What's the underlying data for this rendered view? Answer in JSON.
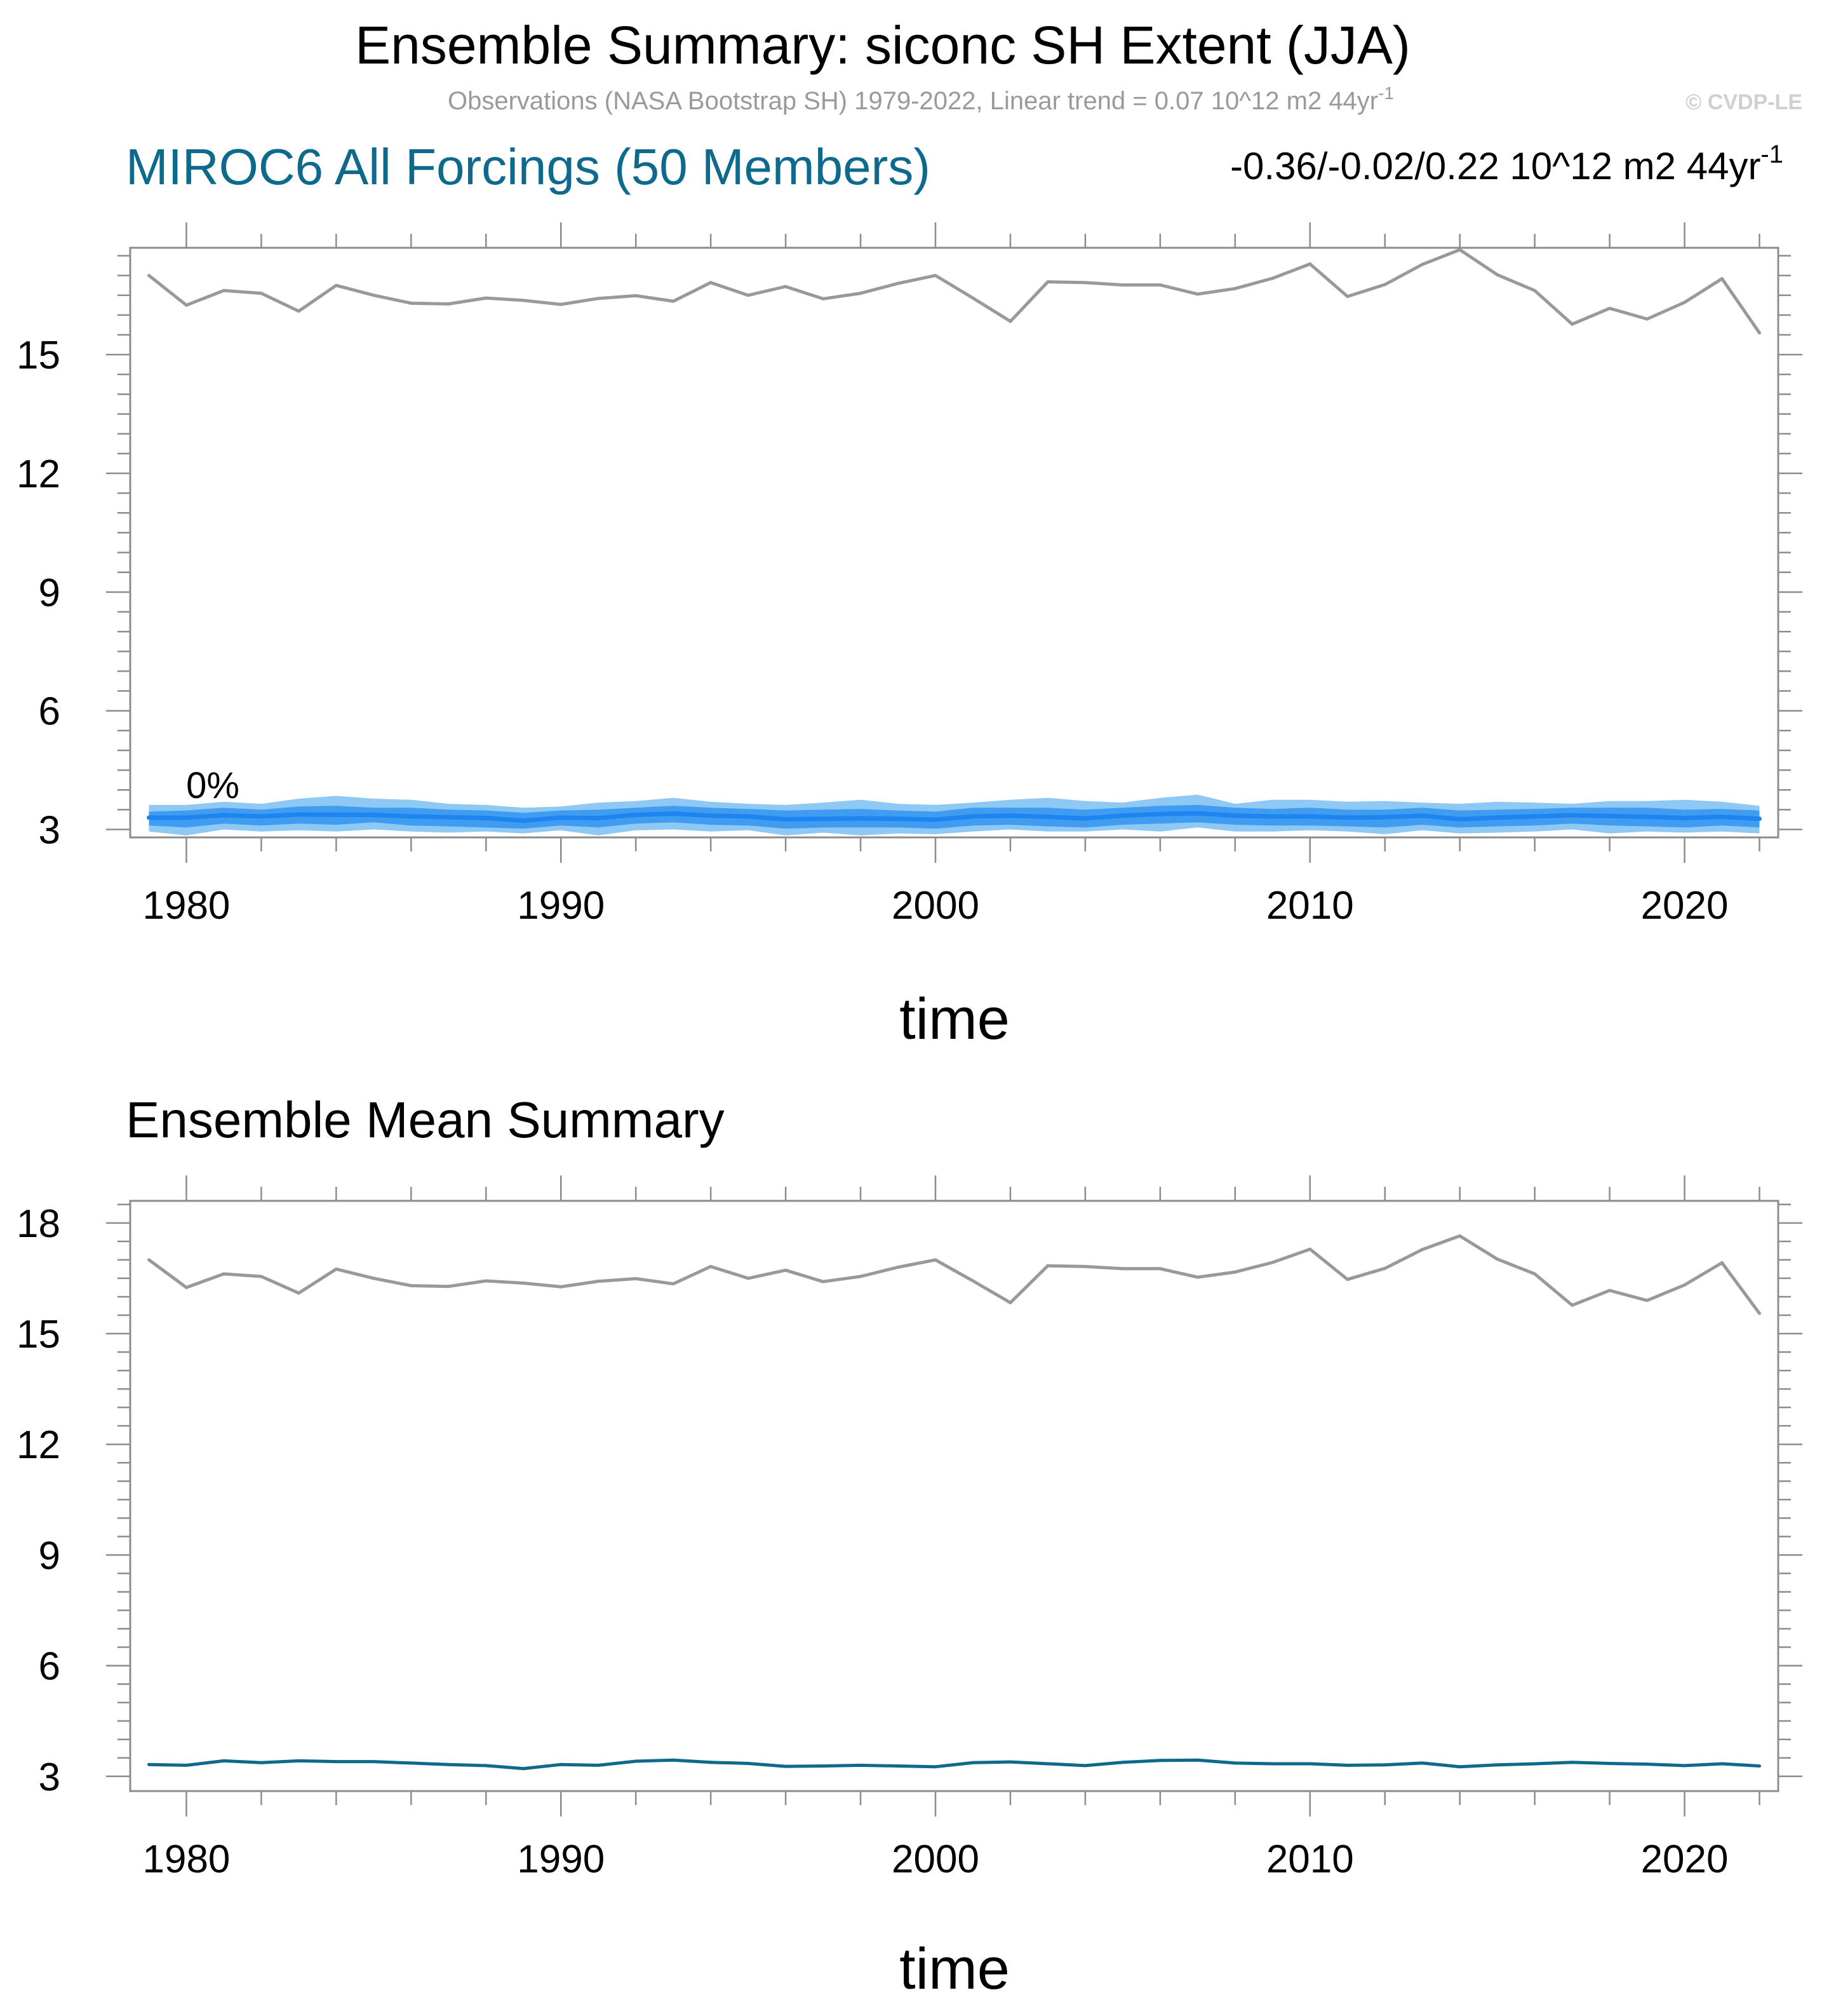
{
  "header": {
    "title": "Ensemble Summary: siconc SH Extent (JJA)",
    "subtitle": "Observations (NASA Bootstrap SH) 1979-2022, Linear trend = 0.07 10^12 m2 44yr",
    "subtitle_sup": "-1",
    "copyright": "© CVDP-LE"
  },
  "panel_top": {
    "model_title": "MIROC6 All Forcings (50 Members)",
    "trend_text": "-0.36/-0.02/0.22 10^12 m2 44yr",
    "trend_sup": "-1",
    "percent_label": "0%",
    "xlabel": "time"
  },
  "panel_bottom": {
    "title": "Ensemble Mean Summary",
    "xlabel": "time"
  },
  "colors": {
    "observations": "#999999",
    "ensemble_mean": "#0e6a8c",
    "band_outer": "#8ec8f5",
    "band_inner": "#3f9cf0",
    "median_line": "#1e84f0",
    "frame": "#8c8c8c"
  },
  "chart_data": [
    {
      "type": "line",
      "title": "MIROC6 All Forcings (50 Members)",
      "xlabel": "time",
      "ylabel": "",
      "xlim": [
        1978.5,
        2022.5
      ],
      "ylim": [
        2.8,
        17.7
      ],
      "x_ticks": [
        1980,
        1990,
        2000,
        2010,
        2020
      ],
      "y_ticks": [
        3,
        6,
        9,
        12,
        15
      ],
      "grid": false,
      "x": [
        1979,
        1980,
        1981,
        1982,
        1983,
        1984,
        1985,
        1986,
        1987,
        1988,
        1989,
        1990,
        1991,
        1992,
        1993,
        1994,
        1995,
        1996,
        1997,
        1998,
        1999,
        2000,
        2001,
        2002,
        2003,
        2004,
        2005,
        2006,
        2007,
        2008,
        2009,
        2010,
        2011,
        2012,
        2013,
        2014,
        2015,
        2016,
        2017,
        2018,
        2019,
        2020,
        2021,
        2022
      ],
      "series": [
        {
          "role": "observations",
          "values": [
            17.0,
            16.25,
            16.62,
            16.55,
            16.1,
            16.75,
            16.5,
            16.3,
            16.28,
            16.43,
            16.37,
            16.27,
            16.42,
            16.49,
            16.35,
            16.82,
            16.5,
            16.72,
            16.41,
            16.55,
            16.8,
            17.0,
            16.43,
            15.84,
            16.84,
            16.82,
            16.76,
            16.76,
            16.53,
            16.67,
            16.93,
            17.29,
            16.47,
            16.77,
            17.28,
            17.65,
            17.02,
            16.62,
            15.77,
            16.17,
            15.9,
            16.32,
            16.92,
            15.55
          ]
        },
        {
          "role": "ensemble_median",
          "values": [
            3.3,
            3.3,
            3.36,
            3.33,
            3.38,
            3.37,
            3.37,
            3.33,
            3.31,
            3.29,
            3.22,
            3.3,
            3.29,
            3.37,
            3.4,
            3.35,
            3.33,
            3.26,
            3.27,
            3.28,
            3.27,
            3.25,
            3.33,
            3.35,
            3.32,
            3.28,
            3.35,
            3.39,
            3.41,
            3.35,
            3.33,
            3.33,
            3.3,
            3.31,
            3.35,
            3.26,
            3.3,
            3.33,
            3.36,
            3.34,
            3.32,
            3.29,
            3.32,
            3.27
          ]
        },
        {
          "role": "inner_band_low",
          "values": [
            3.1,
            3.05,
            3.15,
            3.1,
            3.15,
            3.12,
            3.18,
            3.1,
            3.08,
            3.05,
            3.02,
            3.1,
            3.05,
            3.15,
            3.18,
            3.12,
            3.1,
            3.02,
            3.05,
            3.05,
            3.05,
            3.02,
            3.1,
            3.12,
            3.08,
            3.05,
            3.12,
            3.15,
            3.18,
            3.12,
            3.1,
            3.1,
            3.08,
            3.05,
            3.12,
            3.05,
            3.08,
            3.1,
            3.15,
            3.1,
            3.08,
            3.05,
            3.1,
            3.05
          ]
        },
        {
          "role": "inner_band_high",
          "values": [
            3.45,
            3.48,
            3.55,
            3.5,
            3.58,
            3.6,
            3.55,
            3.55,
            3.5,
            3.48,
            3.42,
            3.48,
            3.5,
            3.55,
            3.6,
            3.55,
            3.52,
            3.48,
            3.5,
            3.52,
            3.48,
            3.45,
            3.55,
            3.55,
            3.55,
            3.5,
            3.55,
            3.6,
            3.62,
            3.55,
            3.52,
            3.55,
            3.5,
            3.5,
            3.55,
            3.48,
            3.5,
            3.52,
            3.55,
            3.55,
            3.55,
            3.5,
            3.52,
            3.48
          ]
        },
        {
          "role": "outer_band_low",
          "values": [
            2.95,
            2.85,
            3.0,
            2.95,
            2.98,
            2.95,
            3.0,
            2.95,
            2.92,
            2.95,
            2.9,
            2.98,
            2.85,
            2.98,
            3.0,
            2.95,
            2.98,
            2.85,
            2.92,
            2.85,
            2.9,
            2.88,
            2.95,
            3.0,
            2.95,
            2.95,
            3.0,
            2.95,
            3.05,
            2.95,
            2.95,
            2.98,
            2.95,
            2.88,
            2.98,
            2.9,
            2.92,
            2.95,
            3.0,
            2.9,
            2.95,
            2.92,
            2.95,
            2.9
          ]
        },
        {
          "role": "outer_band_high",
          "values": [
            3.62,
            3.62,
            3.7,
            3.65,
            3.78,
            3.85,
            3.78,
            3.75,
            3.65,
            3.62,
            3.55,
            3.58,
            3.68,
            3.72,
            3.8,
            3.7,
            3.65,
            3.62,
            3.68,
            3.75,
            3.65,
            3.62,
            3.68,
            3.75,
            3.8,
            3.72,
            3.68,
            3.8,
            3.88,
            3.65,
            3.75,
            3.75,
            3.7,
            3.72,
            3.68,
            3.65,
            3.7,
            3.68,
            3.65,
            3.72,
            3.72,
            3.75,
            3.7,
            3.6
          ]
        }
      ]
    },
    {
      "type": "line",
      "title": "Ensemble Mean Summary",
      "xlabel": "time",
      "ylabel": "",
      "xlim": [
        1978.5,
        2022.5
      ],
      "ylim": [
        2.6,
        18.6
      ],
      "x_ticks": [
        1980,
        1990,
        2000,
        2010,
        2020
      ],
      "y_ticks": [
        3,
        6,
        9,
        12,
        15,
        18
      ],
      "grid": false,
      "x": [
        1979,
        1980,
        1981,
        1982,
        1983,
        1984,
        1985,
        1986,
        1987,
        1988,
        1989,
        1990,
        1991,
        1992,
        1993,
        1994,
        1995,
        1996,
        1997,
        1998,
        1999,
        2000,
        2001,
        2002,
        2003,
        2004,
        2005,
        2006,
        2007,
        2008,
        2009,
        2010,
        2011,
        2012,
        2013,
        2014,
        2015,
        2016,
        2017,
        2018,
        2019,
        2020,
        2021,
        2022
      ],
      "series": [
        {
          "role": "observations",
          "values": [
            17.0,
            16.25,
            16.62,
            16.55,
            16.1,
            16.75,
            16.5,
            16.3,
            16.28,
            16.43,
            16.37,
            16.27,
            16.42,
            16.49,
            16.35,
            16.82,
            16.5,
            16.72,
            16.41,
            16.55,
            16.8,
            17.0,
            16.43,
            15.84,
            16.84,
            16.82,
            16.76,
            16.76,
            16.53,
            16.67,
            16.93,
            17.29,
            16.47,
            16.77,
            17.28,
            17.65,
            17.02,
            16.62,
            15.77,
            16.17,
            15.9,
            16.32,
            16.92,
            15.55
          ]
        },
        {
          "role": "ensemble_mean",
          "values": [
            3.32,
            3.3,
            3.42,
            3.37,
            3.42,
            3.4,
            3.4,
            3.36,
            3.32,
            3.29,
            3.21,
            3.32,
            3.3,
            3.41,
            3.44,
            3.38,
            3.35,
            3.27,
            3.28,
            3.3,
            3.28,
            3.26,
            3.37,
            3.39,
            3.34,
            3.29,
            3.38,
            3.43,
            3.44,
            3.36,
            3.34,
            3.34,
            3.3,
            3.31,
            3.36,
            3.26,
            3.31,
            3.34,
            3.38,
            3.35,
            3.33,
            3.29,
            3.34,
            3.28
          ]
        }
      ]
    }
  ]
}
